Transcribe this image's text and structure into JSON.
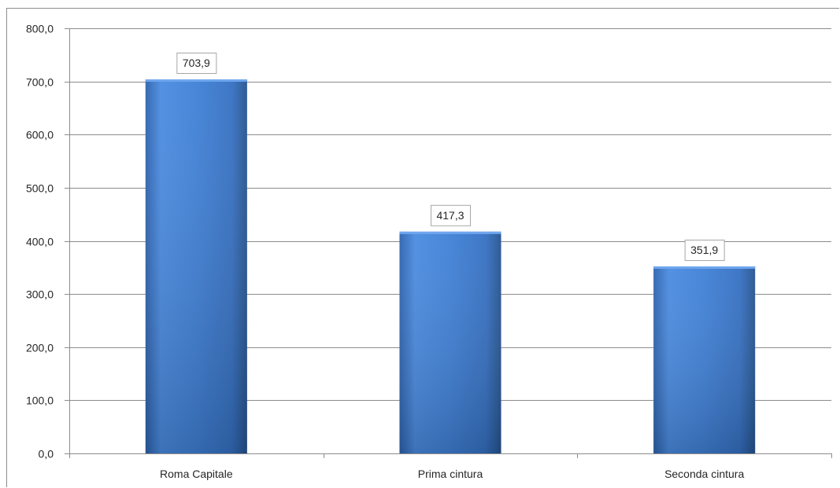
{
  "chart_data": {
    "type": "bar",
    "categories": [
      "Roma Capitale",
      "Prima cintura",
      "Seconda cintura"
    ],
    "values": [
      703.9,
      417.3,
      351.9
    ],
    "value_labels": [
      "703,9",
      "417,3",
      "351,9"
    ],
    "ylim": [
      0,
      800
    ],
    "yticks": [
      0,
      100,
      200,
      300,
      400,
      500,
      600,
      700,
      800
    ],
    "ytick_labels": [
      "0,0",
      "100,0",
      "200,0",
      "300,0",
      "400,0",
      "500,0",
      "600,0",
      "700,0",
      "800,0"
    ],
    "grid": true,
    "legend": "none",
    "bar_color": "#3f7fd3",
    "bar_color_dark": "#2b5ea8",
    "title": "",
    "xlabel": "",
    "ylabel": ""
  }
}
